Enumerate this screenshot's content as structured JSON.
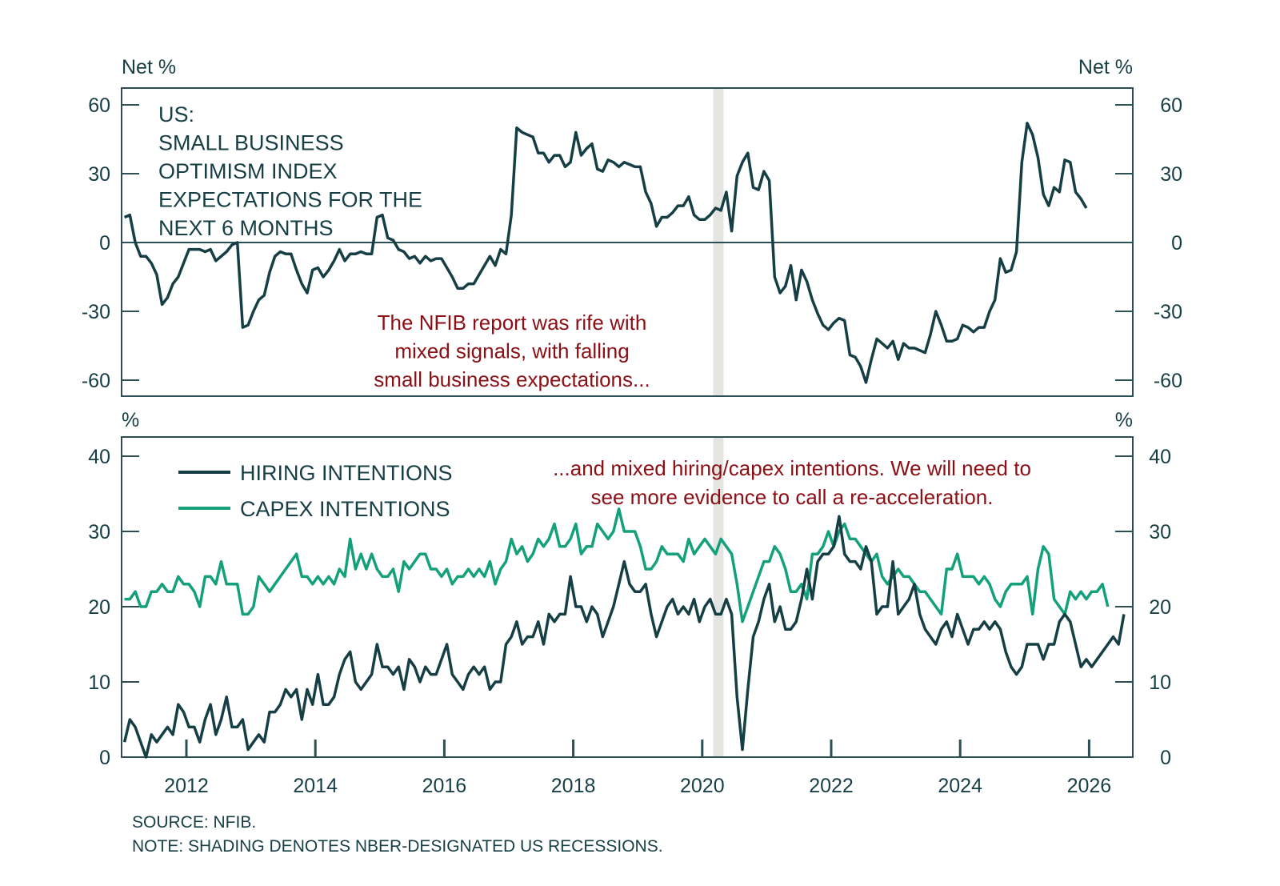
{
  "colors": {
    "hiring": "#163f45",
    "capex": "#14a07a",
    "expectations": "#163f45",
    "annotation": "#8b0f14",
    "recession": "#e4e4e0",
    "axis": "#2c4f55"
  },
  "chart_data": [
    {
      "type": "line",
      "panel": "top",
      "title": "US: SMALL BUSINESS OPTIMISM INDEX EXPECTATIONS FOR THE NEXT 6 MONTHS",
      "title_lines": [
        "US:",
        "SMALL BUSINESS",
        "OPTIMISM INDEX",
        "EXPECTATIONS FOR THE",
        "NEXT 6 MONTHS"
      ],
      "ylabel_left": "Net %",
      "ylabel_right": "Net %",
      "ylim": [
        -67,
        67
      ],
      "yticks": [
        60,
        30,
        0,
        -30,
        -60
      ],
      "ytick_labels": [
        "60",
        "30",
        "0",
        "-30",
        "-60"
      ],
      "zero_line": true,
      "x_start": "2011-01",
      "x_freq": "monthly",
      "annotation_lines": [
        "The NFIB report was rife with",
        "mixed signals, with falling",
        "small business expectations..."
      ],
      "recession_shading": [
        {
          "start": 2020.17,
          "end": 2020.33
        }
      ],
      "series": [
        {
          "name": "Expectations for the next 6 months",
          "values": [
            11,
            12,
            0,
            -6,
            -6,
            -9,
            -14,
            -27,
            -24,
            -18,
            -15,
            -9,
            -3,
            -3,
            -3,
            -4,
            -3,
            -8,
            -6,
            -4,
            -1,
            0,
            -37,
            -36,
            -30,
            -25,
            -23,
            -13,
            -6,
            -4,
            -5,
            -5,
            -12,
            -18,
            -22,
            -12,
            -11,
            -15,
            -12,
            -8,
            -3,
            -8,
            -5,
            -5,
            -4,
            -5,
            -5,
            11,
            12,
            2,
            1,
            -3,
            -4,
            -7,
            -6,
            -9,
            -6,
            -8,
            -7,
            -7,
            -11,
            -15,
            -20,
            -20,
            -18,
            -18,
            -14,
            -10,
            -6,
            -10,
            -3,
            -5,
            12,
            50,
            48,
            47,
            46,
            39,
            39,
            35,
            38,
            38,
            33,
            35,
            48,
            38,
            41,
            43,
            32,
            31,
            36,
            35,
            33,
            35,
            34,
            33,
            33,
            22,
            17,
            7,
            11,
            11,
            13,
            16,
            16,
            20,
            12,
            10,
            10,
            12,
            15,
            14,
            22,
            5,
            29,
            35,
            39,
            24,
            23,
            31,
            27,
            -15,
            -22,
            -19,
            -10,
            -25,
            -12,
            -17,
            -25,
            -31,
            -36,
            -38,
            -35,
            -33,
            -34,
            -49,
            -50,
            -54,
            -61,
            -51,
            -42,
            -44,
            -46,
            -43,
            -51,
            -44,
            -46,
            -46,
            -47,
            -48,
            -40,
            -30,
            -36,
            -43,
            -43,
            -42,
            -36,
            -37,
            -39,
            -37,
            -37,
            -30,
            -25,
            -7,
            -13,
            -12,
            -4,
            35,
            52,
            47,
            37,
            21,
            16,
            24,
            22,
            36,
            35,
            22,
            19,
            15
          ]
        }
      ]
    },
    {
      "type": "line",
      "panel": "bottom",
      "ylabel_left": "%",
      "ylabel_right": "%",
      "ylim": [
        0,
        40
      ],
      "yticks": [
        40,
        30,
        20,
        10,
        0
      ],
      "ytick_labels": [
        "40",
        "30",
        "20",
        "10",
        "0"
      ],
      "x_start": "2011-01",
      "x_freq": "monthly",
      "xticks": [
        2012,
        2014,
        2016,
        2018,
        2020,
        2022,
        2024,
        2026
      ],
      "xtick_labels": [
        "2012",
        "2014",
        "2016",
        "2018",
        "2020",
        "2022",
        "2024",
        "2026"
      ],
      "annotation_lines": [
        "...and mixed hiring/capex intentions. We will need to",
        "see more evidence to call a re-acceleration."
      ],
      "recession_shading": [
        {
          "start": 2020.17,
          "end": 2020.33
        }
      ],
      "legend": [
        {
          "label": "HIRING INTENTIONS",
          "series": "hiring"
        },
        {
          "label": "CAPEX INTENTIONS",
          "series": "capex"
        }
      ],
      "legend_position": "top-left",
      "series": [
        {
          "name": "HIRING INTENTIONS",
          "key": "hiring",
          "values": [
            2,
            5,
            4,
            2,
            0,
            3,
            2,
            3,
            4,
            3,
            7,
            6,
            4,
            4,
            2,
            5,
            7,
            3,
            5,
            8,
            4,
            4,
            5,
            1,
            2,
            3,
            2,
            6,
            6,
            7,
            9,
            8,
            9,
            5,
            9,
            7,
            11,
            7,
            7,
            8,
            11,
            13,
            14,
            10,
            9,
            10,
            11,
            15,
            12,
            12,
            11,
            12,
            9,
            13,
            12,
            10,
            12,
            11,
            11,
            13,
            15,
            11,
            10,
            9,
            11,
            12,
            11,
            12,
            9,
            10,
            10,
            15,
            16,
            18,
            15,
            16,
            16,
            18,
            15,
            19,
            18,
            19,
            19,
            24,
            20,
            20,
            18,
            20,
            19,
            16,
            18,
            20,
            23,
            26,
            23,
            22,
            22,
            23,
            19,
            16,
            18,
            20,
            21,
            19,
            20,
            19,
            21,
            18,
            20,
            21,
            19,
            19,
            21,
            19,
            8,
            1,
            9,
            16,
            18,
            21,
            23,
            18,
            20,
            17,
            17,
            18,
            21,
            25,
            21,
            26,
            27,
            27,
            28,
            32,
            27,
            26,
            26,
            25,
            28,
            26,
            19,
            20,
            20,
            26,
            19,
            20,
            21,
            23,
            19,
            17,
            16,
            15,
            17,
            18,
            16,
            19,
            17,
            15,
            17,
            17,
            18,
            17,
            18,
            17,
            14,
            12,
            11,
            12,
            15,
            15,
            15,
            13,
            15,
            15,
            18,
            19,
            18,
            15,
            12,
            13,
            12,
            13,
            14,
            15,
            16,
            15,
            19
          ]
        },
        {
          "name": "CAPEX INTENTIONS",
          "key": "capex",
          "values": [
            21,
            21,
            22,
            20,
            20,
            22,
            22,
            23,
            22,
            22,
            24,
            23,
            23,
            22,
            20,
            24,
            24,
            23,
            26,
            23,
            23,
            23,
            19,
            19,
            20,
            24,
            23,
            22,
            23,
            24,
            25,
            26,
            27,
            24,
            24,
            23,
            24,
            23,
            24,
            23,
            25,
            24,
            29,
            25,
            27,
            25,
            27,
            25,
            24,
            24,
            25,
            22,
            26,
            25,
            26,
            27,
            27,
            25,
            25,
            24,
            25,
            23,
            24,
            24,
            25,
            24,
            25,
            24,
            26,
            23,
            25,
            26,
            29,
            27,
            28,
            26,
            27,
            29,
            28,
            29,
            31,
            28,
            28,
            29,
            31,
            27,
            28,
            28,
            31,
            30,
            29,
            30,
            33,
            30,
            30,
            30,
            28,
            25,
            25,
            26,
            28,
            27,
            27,
            27,
            26,
            29,
            27,
            28,
            29,
            28,
            27,
            29,
            28,
            27,
            23,
            18,
            20,
            22,
            24,
            26,
            26,
            28,
            27,
            25,
            22,
            22,
            23,
            21,
            27,
            27,
            28,
            30,
            28,
            30,
            31,
            29,
            29,
            28,
            27,
            26,
            27,
            24,
            23,
            24,
            25,
            24,
            24,
            23,
            22,
            22,
            21,
            20,
            19,
            25,
            25,
            27,
            24,
            24,
            24,
            23,
            24,
            23,
            21,
            20,
            22,
            23,
            23,
            23,
            24,
            19,
            25,
            28,
            27,
            21,
            20,
            19,
            22,
            21,
            22,
            21,
            22,
            22,
            23,
            20
          ]
        }
      ]
    }
  ],
  "footnotes": {
    "source": "SOURCE: NFIB.",
    "note": "NOTE: SHADING DENOTES NBER-DESIGNATED US RECESSIONS."
  }
}
